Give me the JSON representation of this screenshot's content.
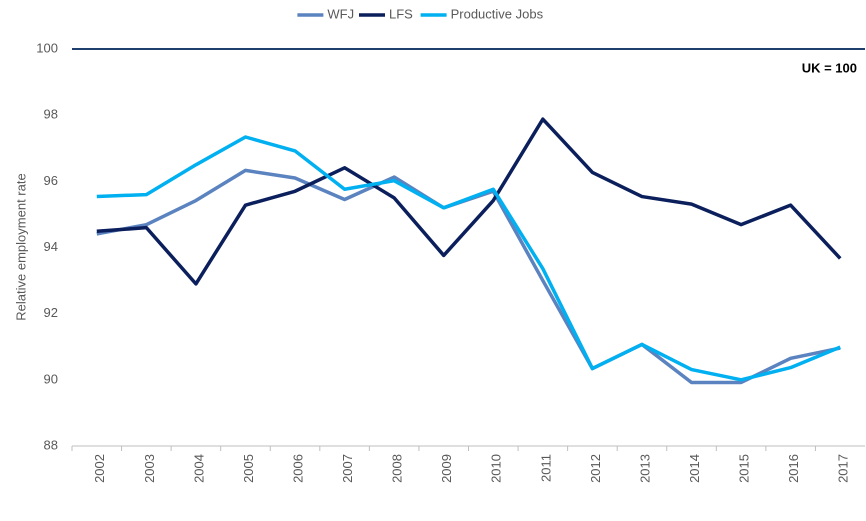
{
  "chart_data": {
    "type": "line",
    "y_label": "Relative employment rate",
    "categories": [
      "2002",
      "2003",
      "2004",
      "2005",
      "2006",
      "2007",
      "2008",
      "2009",
      "2010",
      "2011",
      "2012",
      "2013",
      "2014",
      "2015",
      "2016",
      "2017"
    ],
    "series": [
      {
        "name": "WFJ",
        "color": "#5b83c0",
        "values": [
          94.41,
          94.69,
          95.42,
          96.33,
          96.1,
          95.45,
          96.13,
          95.2,
          95.7,
          93.0,
          90.34,
          91.07,
          89.92,
          89.92,
          90.65,
          90.96
        ]
      },
      {
        "name": "LFS",
        "color": "#0b1f5c",
        "values": [
          94.49,
          94.6,
          92.9,
          95.28,
          95.7,
          96.41,
          95.5,
          93.76,
          95.42,
          97.88,
          96.27,
          95.54,
          95.31,
          94.69,
          95.28,
          93.67
        ]
      },
      {
        "name": "Productive Jobs",
        "color": "#00b0f0",
        "values": [
          95.54,
          95.6,
          96.5,
          97.34,
          96.92,
          95.76,
          96.02,
          95.2,
          95.76,
          93.36,
          90.34,
          91.07,
          90.31,
          90.0,
          90.37,
          90.99
        ]
      }
    ],
    "reference_line": {
      "value": 100,
      "label": "UK = 100",
      "color": "#1f3f6e"
    },
    "ylim": [
      88,
      100
    ],
    "yticks": [
      88,
      90,
      92,
      94,
      96,
      98,
      100
    ],
    "grid": false,
    "legend": "top"
  }
}
